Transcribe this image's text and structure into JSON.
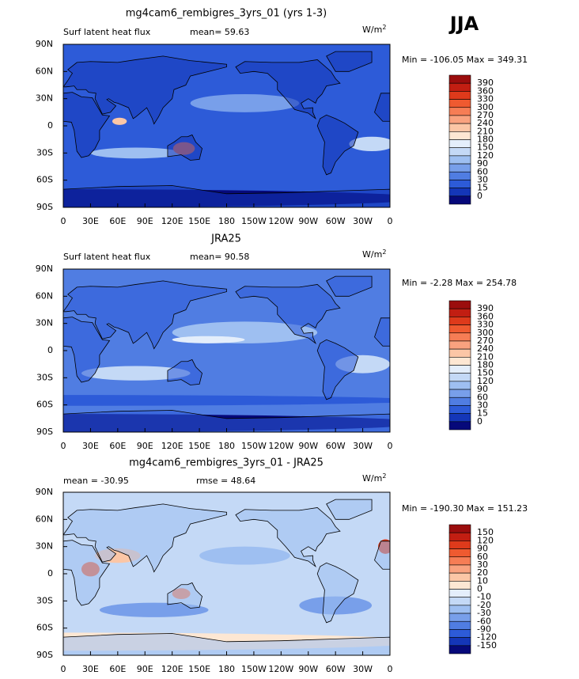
{
  "header": {
    "season": "JJA"
  },
  "lat_labels": [
    "90N",
    "60N",
    "30N",
    "0",
    "30S",
    "60S",
    "90S"
  ],
  "lon_labels": [
    "0",
    "30E",
    "60E",
    "90E",
    "120E",
    "150E",
    "180",
    "150W",
    "120W",
    "90W",
    "60W",
    "30W",
    "0"
  ],
  "panels": [
    {
      "title": "mg4cam6_rembigres_3yrs_01 (yrs 1-3)",
      "left": "Surf latent heat flux",
      "stat": "mean=  59.63",
      "units": "W/m",
      "units_exp": "2",
      "minmax": "Min = -106.05 Max = 349.31",
      "levels": [
        390,
        360,
        330,
        300,
        270,
        240,
        210,
        180,
        150,
        120,
        90,
        60,
        30,
        15,
        0
      ],
      "colors": [
        "#9b0d0d",
        "#c21e12",
        "#de3a1b",
        "#ef5a30",
        "#f67d55",
        "#f9a27f",
        "#fbc6a6",
        "#fde7d3",
        "#e4eefb",
        "#c4d9f6",
        "#9ebff1",
        "#789fea",
        "#507de2",
        "#2d5bd8",
        "#1436b8",
        "#06097a"
      ]
    },
    {
      "title": "JRA25",
      "left": "Surf latent heat flux",
      "stat": "mean=  90.58",
      "units": "W/m",
      "units_exp": "2",
      "minmax": "Min =  -2.28 Max = 254.78",
      "levels": [
        390,
        360,
        330,
        300,
        270,
        240,
        210,
        180,
        150,
        120,
        90,
        60,
        30,
        15,
        0
      ],
      "colors": [
        "#9b0d0d",
        "#c21e12",
        "#de3a1b",
        "#ef5a30",
        "#f67d55",
        "#f9a27f",
        "#fbc6a6",
        "#fde7d3",
        "#e4eefb",
        "#c4d9f6",
        "#9ebff1",
        "#789fea",
        "#507de2",
        "#2d5bd8",
        "#1436b8",
        "#06097a"
      ]
    },
    {
      "title": "mg4cam6_rembigres_3yrs_01 - JRA25",
      "left": "mean = -30.95",
      "stat": "rmse =   48.64",
      "units": "W/m",
      "units_exp": "2",
      "minmax": "Min = -190.30 Max = 151.23",
      "levels": [
        150,
        120,
        90,
        60,
        30,
        20,
        10,
        0,
        -10,
        -20,
        -30,
        -60,
        -90,
        -120,
        -150
      ],
      "colors": [
        "#9b0d0d",
        "#c21e12",
        "#de3a1b",
        "#ef5a30",
        "#f67d55",
        "#f9a27f",
        "#fbc6a6",
        "#fde7d3",
        "#e4eefb",
        "#c4d9f6",
        "#9ebff1",
        "#789fea",
        "#507de2",
        "#2d5bd8",
        "#1436b8",
        "#06097a"
      ]
    }
  ]
}
